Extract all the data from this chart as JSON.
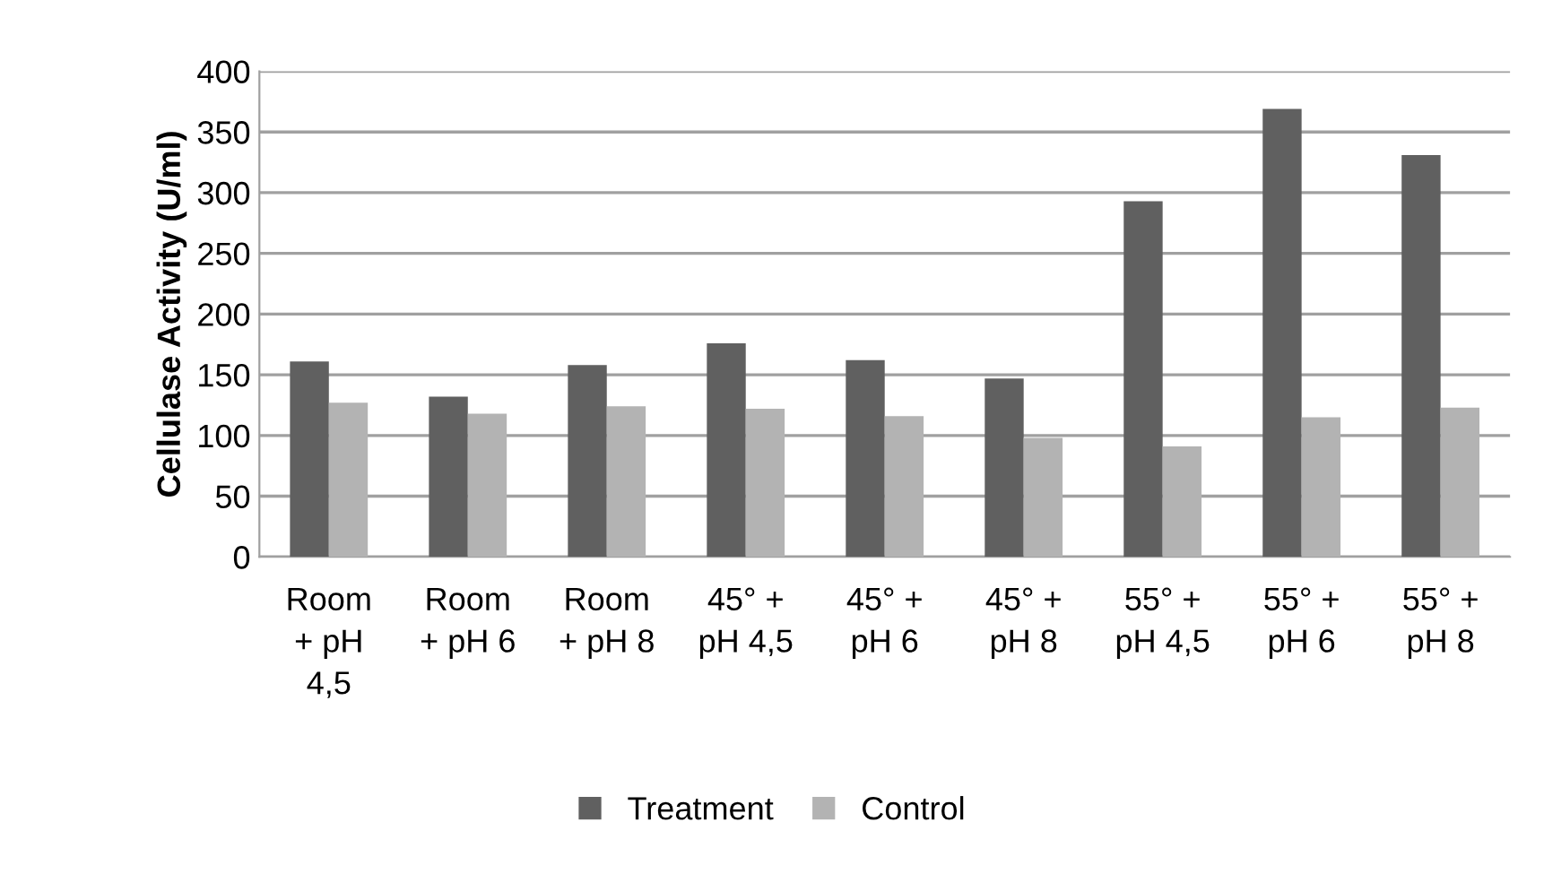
{
  "chart_data": {
    "type": "bar",
    "ylabel": "Cellulase Activity (U/ml)",
    "categories": [
      "Room\n+ pH\n4,5",
      "Room\n+ pH 6",
      "Room\n+ pH 8",
      "45° +\npH 4,5",
      "45° +\npH 6",
      "45° +\npH 8",
      "55° +\npH 4,5",
      "55° +\npH 6",
      "55° +\npH 8"
    ],
    "series": [
      {
        "name": "Treatment",
        "color": "#606060",
        "values": [
          161,
          132,
          158,
          176,
          162,
          147,
          293,
          369,
          331
        ]
      },
      {
        "name": "Control",
        "color": "#b3b3b3",
        "values": [
          127,
          118,
          124,
          122,
          116,
          98,
          91,
          115,
          123
        ]
      }
    ],
    "ylim": [
      0,
      400
    ],
    "yticks": [
      0,
      50,
      100,
      150,
      200,
      250,
      300,
      350,
      400
    ],
    "grid": "y",
    "legend": "bottom"
  }
}
